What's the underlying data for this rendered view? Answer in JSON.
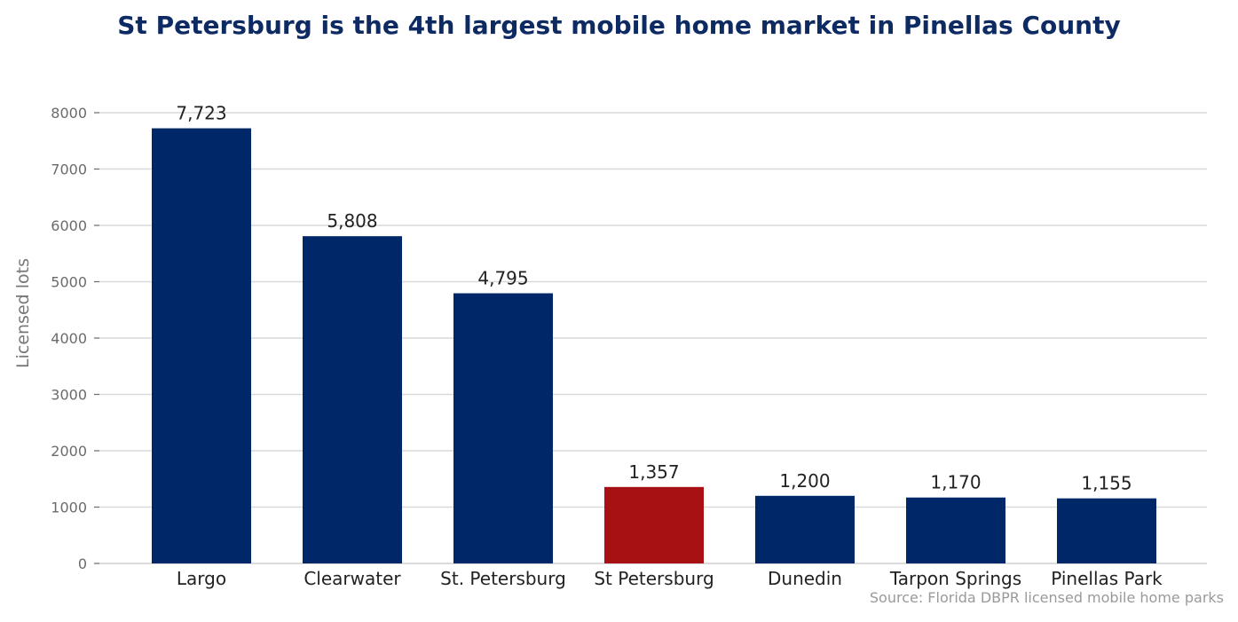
{
  "title": "St Petersburg is the 4th largest mobile home market in Pinellas County",
  "source": "Source: Florida DBPR licensed mobile home parks",
  "colors": {
    "default_bar": "#002868",
    "highlight_bar": "#a81113",
    "title": "#0e2a63",
    "grid": "#d9d9d9",
    "tick_text": "#6b6b6b",
    "value_text": "#222222"
  },
  "chart_data": {
    "type": "bar",
    "title": "St Petersburg is the 4th largest mobile home market in Pinellas County",
    "xlabel": "",
    "ylabel": "Licensed lots",
    "categories": [
      "Largo",
      "Clearwater",
      "St. Petersburg",
      "St Petersburg",
      "Dunedin",
      "Tarpon Springs",
      "Pinellas Park"
    ],
    "values": [
      7723,
      5808,
      4795,
      1357,
      1200,
      1170,
      1155
    ],
    "value_labels": [
      "7,723",
      "5,808",
      "4,795",
      "1,357",
      "1,200",
      "1,170",
      "1,155"
    ],
    "highlight_index": 3,
    "ylim": [
      0,
      8000
    ],
    "yticks": [
      0,
      1000,
      2000,
      3000,
      4000,
      5000,
      6000,
      7000,
      8000
    ],
    "grid": true
  }
}
